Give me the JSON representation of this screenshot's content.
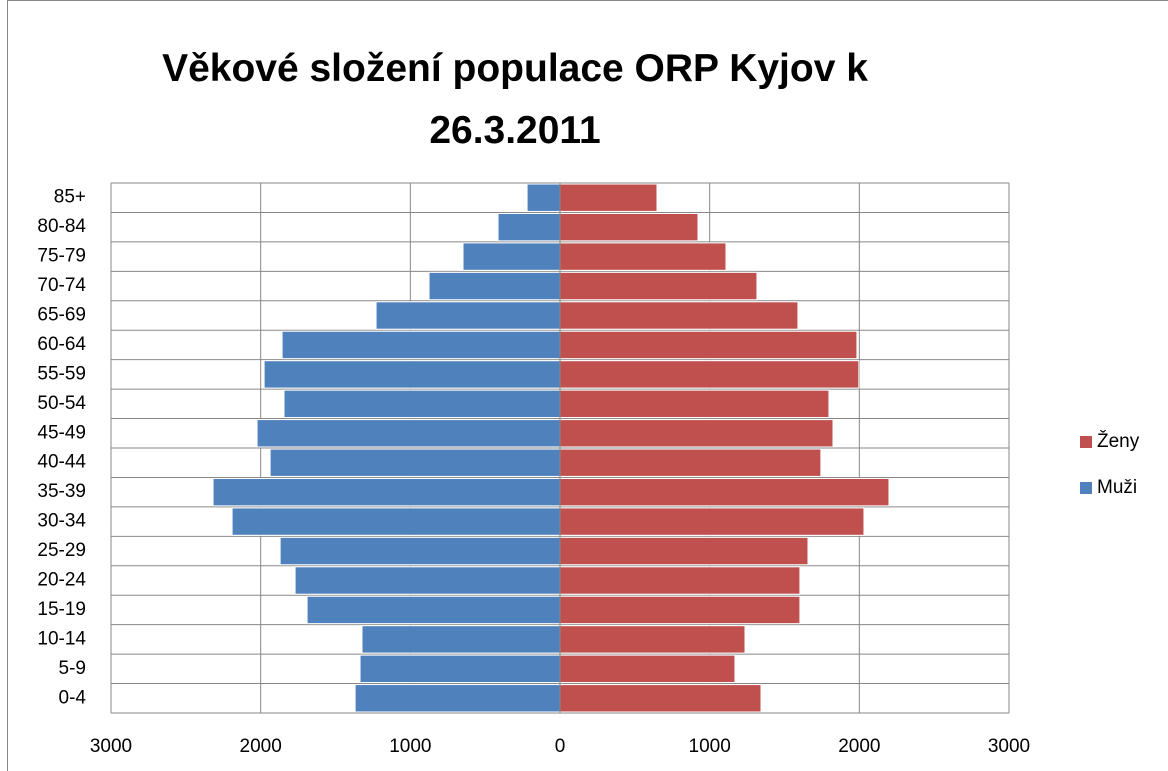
{
  "chart_data": {
    "type": "bar",
    "orientation": "horizontal",
    "stacked": true,
    "title": "Věkové složení populace ORP Kyjov k 26.3.2011",
    "categories": [
      "0-4",
      "5-9",
      "10-14",
      "15-19",
      "20-24",
      "25-29",
      "30-34",
      "35-39",
      "40-44",
      "45-49",
      "50-54",
      "55-59",
      "60-64",
      "65-69",
      "70-74",
      "75-79",
      "80-84",
      "85+"
    ],
    "series": [
      {
        "name": "Muži",
        "color": "#4f81bd",
        "values": [
          -1369,
          -1336,
          -1323,
          -1690,
          -1770,
          -1870,
          -2191,
          -2318,
          -1937,
          -2024,
          -1844,
          -1977,
          -1857,
          -1229,
          -875,
          -648,
          -414,
          -220
        ]
      },
      {
        "name": "Ženy",
        "color": "#c0504d",
        "values": [
          1343,
          1169,
          1236,
          1603,
          1603,
          1657,
          2031,
          2198,
          1743,
          1824,
          1797,
          1997,
          1984,
          1590,
          1316,
          1109,
          922,
          648
        ]
      }
    ],
    "xlim": [
      -3000,
      3000
    ],
    "xticks": [
      {
        "value": -3000,
        "label": "3000"
      },
      {
        "value": -2000,
        "label": "2000"
      },
      {
        "value": -1000,
        "label": "1000"
      },
      0,
      1000,
      2000,
      3000
    ],
    "grid": true,
    "legend": "right"
  }
}
